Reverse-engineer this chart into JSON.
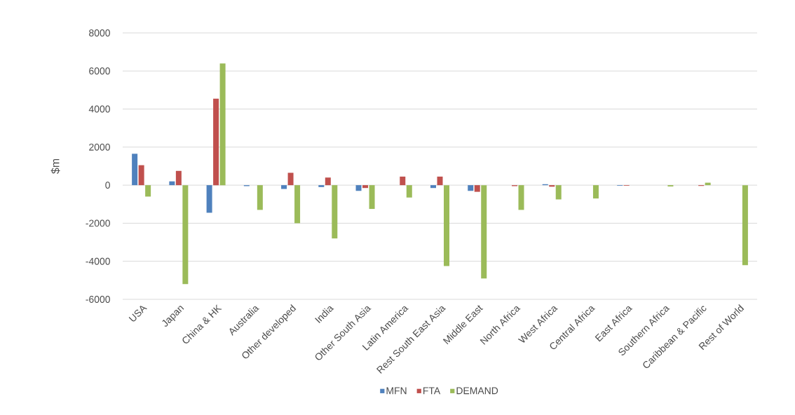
{
  "chart_data": {
    "type": "bar",
    "ylabel": "$m",
    "categories": [
      "USA",
      "Japan",
      "China & HK",
      "Australia",
      "Other developed",
      "India",
      "Other South Asia",
      "Latin America",
      "Rest South East Asia",
      "Middle East",
      "North Africa",
      "West Africa",
      "Central Africa",
      "East Africa",
      "Southern Africa",
      "Caribbean & Pacific",
      "Rest of World"
    ],
    "series": [
      {
        "name": "MFN",
        "color": "#4f81bd",
        "values": [
          1650,
          200,
          -1450,
          -50,
          -200,
          -100,
          -300,
          0,
          -150,
          -300,
          0,
          50,
          0,
          -30,
          0,
          0,
          0
        ]
      },
      {
        "name": "FTA",
        "color": "#c0504d",
        "values": [
          1050,
          750,
          4550,
          0,
          650,
          400,
          -150,
          450,
          450,
          -350,
          -50,
          -80,
          0,
          -30,
          0,
          -40,
          0
        ]
      },
      {
        "name": "DEMAND",
        "color": "#9bbb59",
        "values": [
          -600,
          -5200,
          6400,
          -1300,
          -2000,
          -2800,
          -1250,
          -650,
          -4250,
          -4900,
          -1300,
          -750,
          -700,
          0,
          -70,
          130,
          -4200
        ]
      }
    ],
    "ylim": [
      -6000,
      8000
    ],
    "yticks": [
      -6000,
      -4000,
      -2000,
      0,
      2000,
      4000,
      6000,
      8000
    ],
    "grid": "y",
    "legend": "bottom"
  }
}
